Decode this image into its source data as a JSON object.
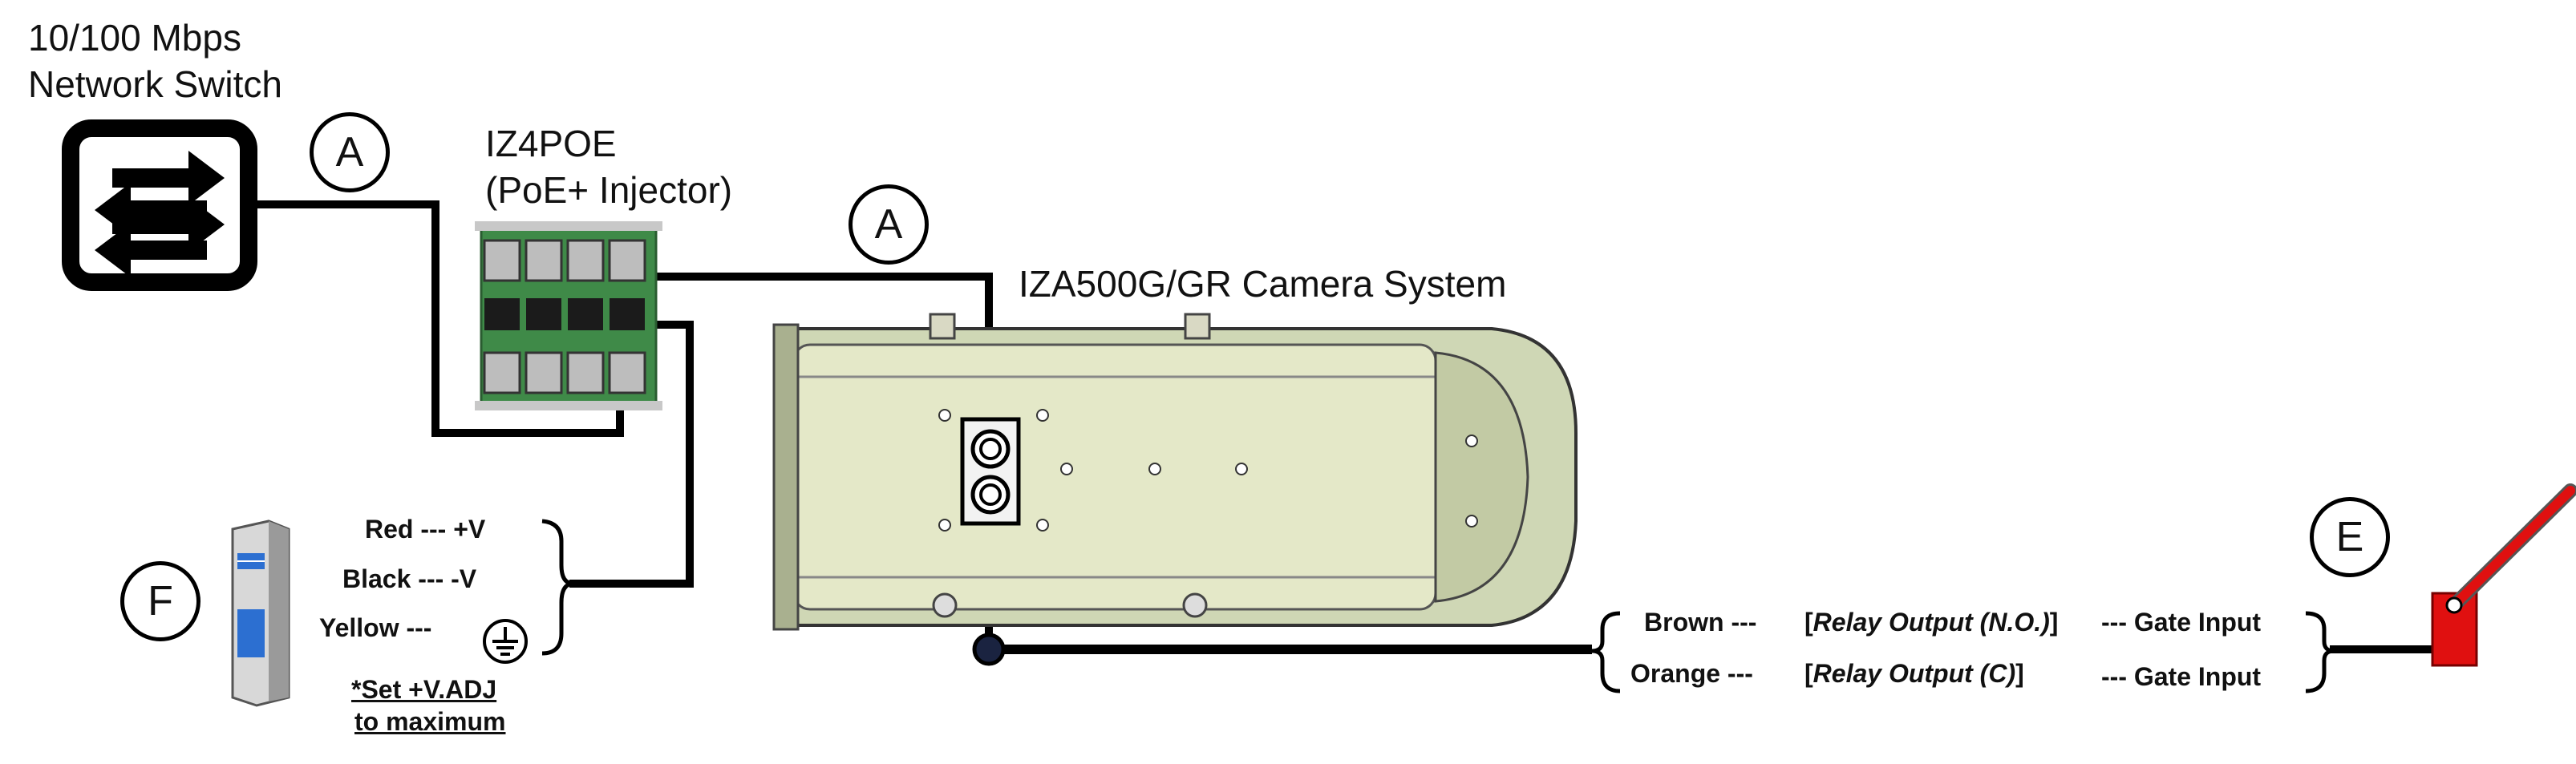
{
  "switch": {
    "title_line1": "10/100 Mbps",
    "title_line2": "Network Switch"
  },
  "injector": {
    "title_line1": "IZ4POE",
    "title_line2": "(PoE+ Injector)"
  },
  "camera": {
    "title": "IZA500G/GR Camera System"
  },
  "callouts": {
    "a1": "A",
    "a2": "A",
    "e": "E",
    "f": "F"
  },
  "power": {
    "red": "Red",
    "red_v": "--- +V",
    "black": "Black",
    "black_v": "--- -V",
    "yellow": "Yellow",
    "yellow_v": "---",
    "note_line1": "*Set +V.ADJ",
    "note_line2": "to maximum"
  },
  "relay": {
    "brown": "Brown ---",
    "orange": "Orange ---",
    "brown_out": "Relay Output (N.O.)",
    "orange_out": "Relay Output (C)",
    "gate1": "--- Gate Input",
    "gate2": "--- Gate Input"
  },
  "colors": {
    "line": "#000000",
    "board": "#3f8a48",
    "camera_body": "#e4e8c8",
    "gate": "#e01010"
  }
}
